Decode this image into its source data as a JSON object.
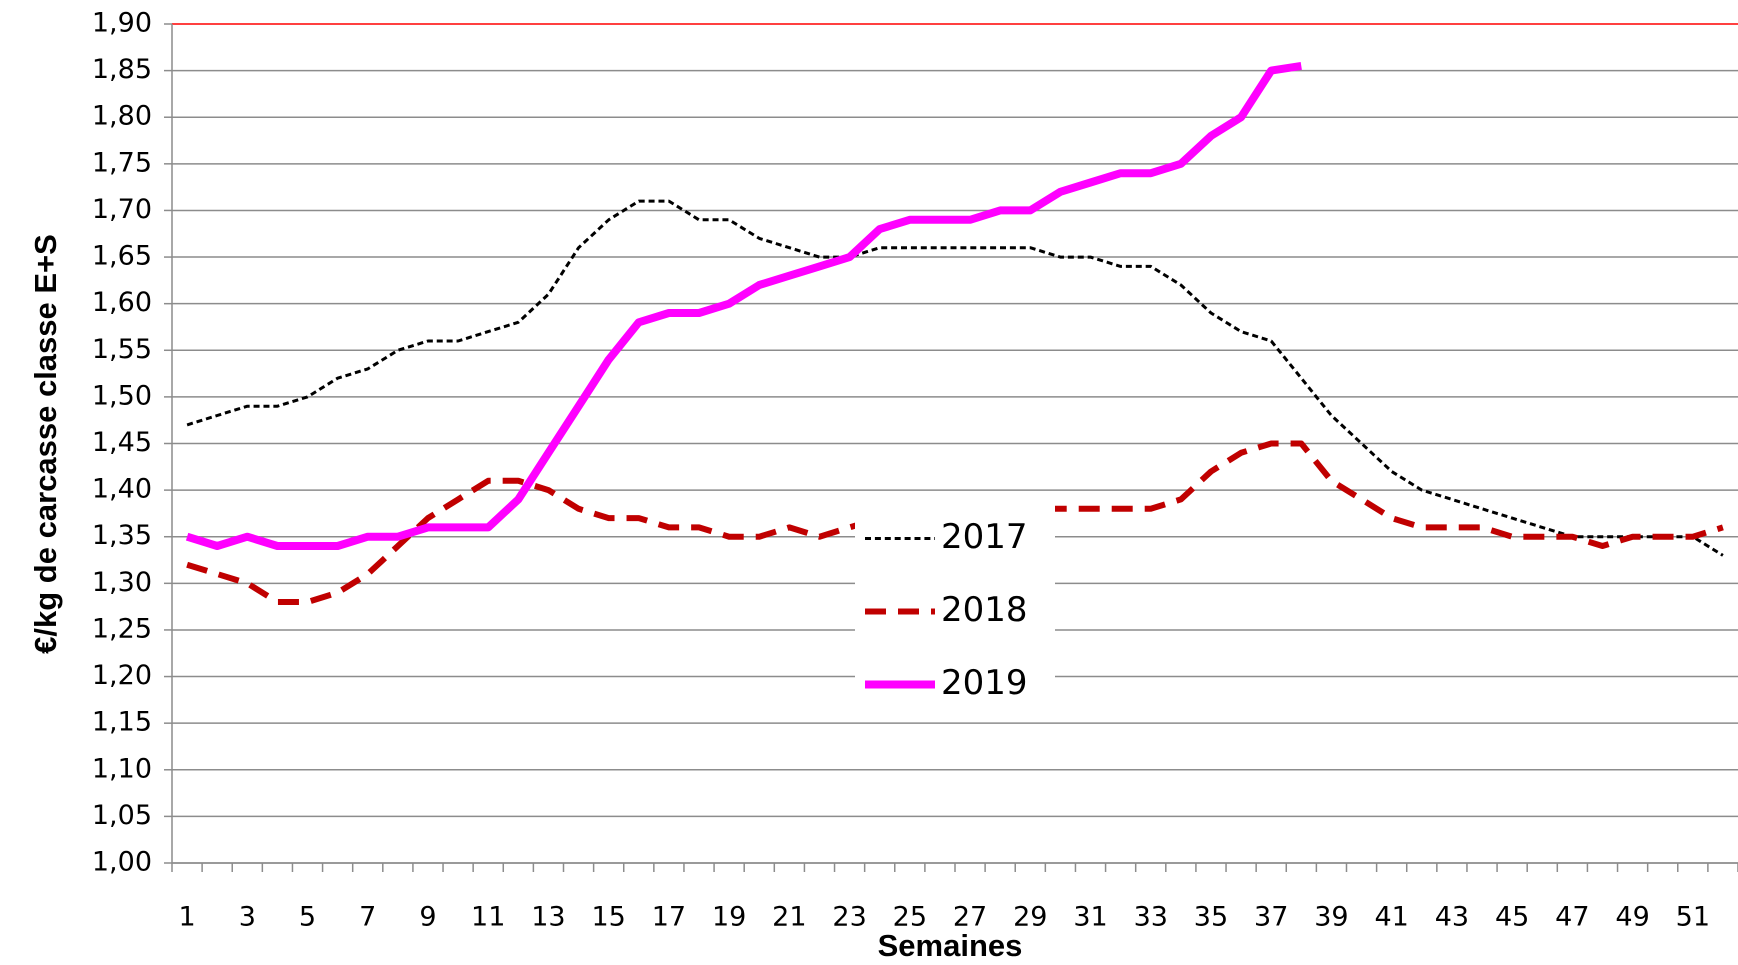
{
  "chart_data": {
    "type": "line",
    "y_label": "€/kg de carcasse classe E+S",
    "x_label": "Semaines",
    "categories": [
      "1",
      null,
      "3",
      null,
      "5",
      null,
      "7",
      null,
      "9",
      null,
      "11",
      null,
      "13",
      null,
      "15",
      null,
      "17",
      null,
      "19",
      null,
      "21",
      null,
      "23",
      null,
      "25",
      null,
      "27",
      null,
      "29",
      null,
      "31",
      null,
      "33",
      null,
      "35",
      null,
      "37",
      null,
      "39",
      null,
      "41",
      null,
      "43",
      null,
      "45",
      null,
      "47",
      null,
      "49",
      null,
      "51",
      null
    ],
    "ylim": [
      1.0,
      1.9
    ],
    "yticks": [
      {
        "value": 1.0,
        "label": "1,00"
      },
      {
        "value": 1.05,
        "label": "1,05"
      },
      {
        "value": 1.1,
        "label": "1,10"
      },
      {
        "value": 1.15,
        "label": "1,15"
      },
      {
        "value": 1.2,
        "label": "1,20"
      },
      {
        "value": 1.25,
        "label": "1,25"
      },
      {
        "value": 1.3,
        "label": "1,30"
      },
      {
        "value": 1.35,
        "label": "1,35"
      },
      {
        "value": 1.4,
        "label": "1,40"
      },
      {
        "value": 1.45,
        "label": "1,45"
      },
      {
        "value": 1.5,
        "label": "1,50"
      },
      {
        "value": 1.55,
        "label": "1,55"
      },
      {
        "value": 1.6,
        "label": "1,60"
      },
      {
        "value": 1.65,
        "label": "1,65"
      },
      {
        "value": 1.7,
        "label": "1,70"
      },
      {
        "value": 1.75,
        "label": "1,75"
      },
      {
        "value": 1.8,
        "label": "1,80"
      },
      {
        "value": 1.85,
        "label": "1,85"
      },
      {
        "value": 1.9,
        "label": "1,90"
      }
    ],
    "grid": true,
    "legend": "center",
    "series": [
      {
        "name": "2017",
        "color": "#000000",
        "dash": "dotted",
        "width": 3,
        "values": [
          1.47,
          1.48,
          1.49,
          1.49,
          1.5,
          1.52,
          1.53,
          1.55,
          1.56,
          1.56,
          1.57,
          1.58,
          1.61,
          1.66,
          1.69,
          1.71,
          1.71,
          1.69,
          1.69,
          1.67,
          1.66,
          1.65,
          1.65,
          1.66,
          1.66,
          1.66,
          1.66,
          1.66,
          1.66,
          1.65,
          1.65,
          1.64,
          1.64,
          1.62,
          1.59,
          1.57,
          1.56,
          1.52,
          1.48,
          1.45,
          1.42,
          1.4,
          1.39,
          1.38,
          1.37,
          1.36,
          1.35,
          1.35,
          1.35,
          1.35,
          1.35,
          1.33
        ]
      },
      {
        "name": "2018",
        "color": "#c00000",
        "dash": "dashed",
        "width": 6,
        "values": [
          1.32,
          1.31,
          1.3,
          1.28,
          1.28,
          1.29,
          1.31,
          1.34,
          1.37,
          1.39,
          1.41,
          1.41,
          1.4,
          1.38,
          1.37,
          1.37,
          1.36,
          1.36,
          1.35,
          1.35,
          1.36,
          1.35,
          1.36,
          1.37,
          1.37,
          1.37,
          1.38,
          1.38,
          1.38,
          1.38,
          1.38,
          1.38,
          1.38,
          1.39,
          1.42,
          1.44,
          1.45,
          1.45,
          1.41,
          1.39,
          1.37,
          1.36,
          1.36,
          1.36,
          1.35,
          1.35,
          1.35,
          1.34,
          1.35,
          1.35,
          1.35,
          1.36
        ]
      },
      {
        "name": "2019",
        "color": "#ff00ff",
        "dash": "solid",
        "width": 8,
        "values": [
          1.35,
          1.34,
          1.35,
          1.34,
          1.34,
          1.34,
          1.35,
          1.35,
          1.36,
          1.36,
          1.36,
          1.39,
          1.44,
          1.49,
          1.54,
          1.58,
          1.59,
          1.59,
          1.6,
          1.62,
          1.63,
          1.64,
          1.65,
          1.68,
          1.69,
          1.69,
          1.69,
          1.7,
          1.7,
          1.72,
          1.73,
          1.74,
          1.74,
          1.75,
          1.78,
          1.8,
          1.85,
          1.855,
          null,
          null,
          null,
          null,
          null,
          null,
          null,
          null,
          null,
          null,
          null,
          null,
          null,
          null
        ]
      }
    ]
  }
}
